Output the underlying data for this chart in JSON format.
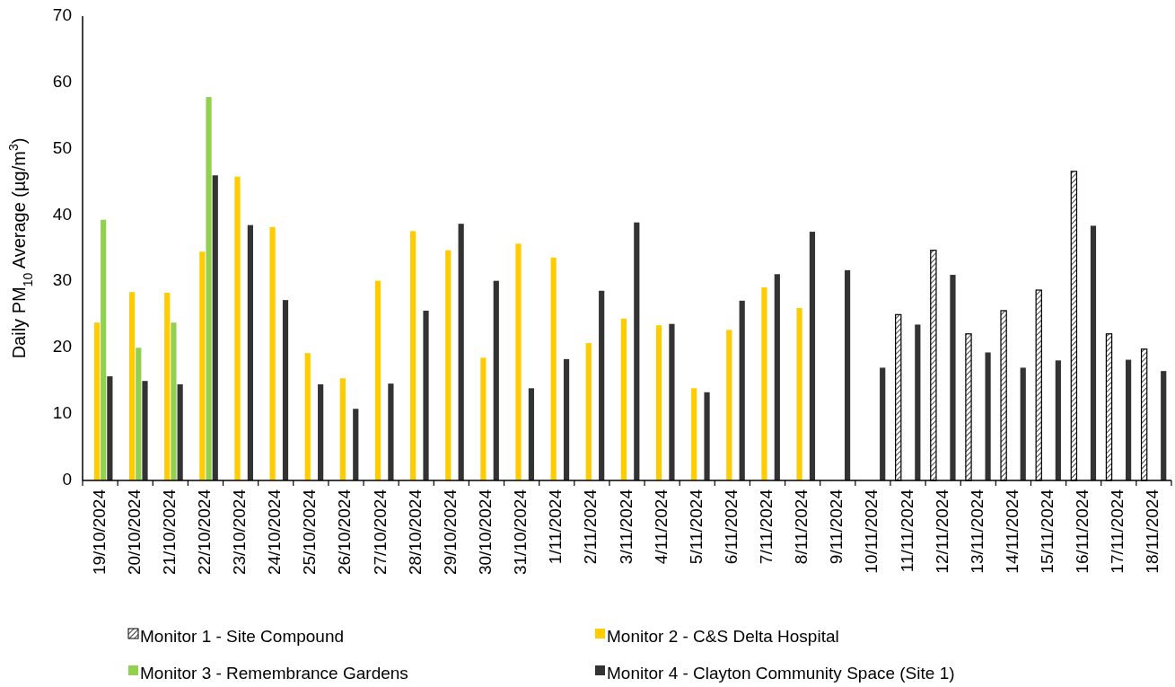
{
  "chart_data": {
    "type": "bar",
    "ylabel": "Daily PM$_{10}$ Average (µg/m$^{3}$)",
    "categories": [
      "19/10/2024",
      "20/10/2024",
      "21/10/2024",
      "22/10/2024",
      "23/10/2024",
      "24/10/2024",
      "25/10/2024",
      "26/10/2024",
      "27/10/2024",
      "28/10/2024",
      "29/10/2024",
      "30/10/2024",
      "31/10/2024",
      "1/11/2024",
      "2/11/2024",
      "3/11/2024",
      "4/11/2024",
      "5/11/2024",
      "6/11/2024",
      "7/11/2024",
      "8/11/2024",
      "9/11/2024",
      "10/11/2024",
      "11/11/2024",
      "12/11/2024",
      "13/11/2024",
      "14/11/2024",
      "15/11/2024",
      "16/11/2024",
      "17/11/2024",
      "18/11/2024"
    ],
    "series": [
      {
        "name": "Monitor 1 - Site Compound",
        "color": "#000000",
        "values": [
          null,
          null,
          null,
          null,
          null,
          null,
          null,
          null,
          null,
          null,
          null,
          null,
          null,
          null,
          null,
          null,
          null,
          null,
          null,
          null,
          null,
          null,
          null,
          25.0,
          34.7,
          22.1,
          25.6,
          28.7,
          46.6,
          22.1,
          19.8
        ]
      },
      {
        "name": "Monitor 2 - C&S Delta Hospital",
        "color": "#ffcc00",
        "values": [
          23.8,
          28.4,
          28.3,
          34.5,
          45.8,
          38.2,
          19.2,
          15.4,
          30.1,
          37.6,
          34.7,
          18.5,
          35.7,
          33.6,
          20.7,
          24.4,
          23.4,
          13.9,
          22.7,
          29.1,
          26.0,
          null,
          null,
          null,
          null,
          null,
          null,
          null,
          null,
          null,
          null
        ]
      },
      {
        "name": "Monitor 3 - Remembrance Gardens",
        "color": "#92d050",
        "values": [
          39.3,
          20.0,
          23.8,
          57.8,
          null,
          null,
          null,
          null,
          null,
          null,
          null,
          null,
          null,
          null,
          null,
          null,
          null,
          null,
          null,
          null,
          null,
          null,
          null,
          null,
          null,
          null,
          null,
          null,
          null,
          null,
          null
        ]
      },
      {
        "name": "Monitor 4 - Clayton Community Space (Site 1)",
        "color": "#333333",
        "values": [
          15.7,
          15.0,
          14.5,
          46.0,
          38.5,
          27.2,
          14.5,
          10.8,
          14.6,
          25.6,
          38.7,
          30.1,
          13.9,
          18.3,
          28.6,
          38.9,
          23.6,
          13.3,
          27.1,
          31.1,
          37.5,
          31.7,
          17.0,
          23.5,
          31.0,
          19.3,
          17.0,
          18.1,
          38.4,
          18.2,
          16.5
        ]
      }
    ],
    "ylim": [
      0,
      70
    ],
    "yticks": [
      0,
      10,
      20,
      30,
      40,
      50,
      60,
      70
    ],
    "legend": "bottom"
  }
}
